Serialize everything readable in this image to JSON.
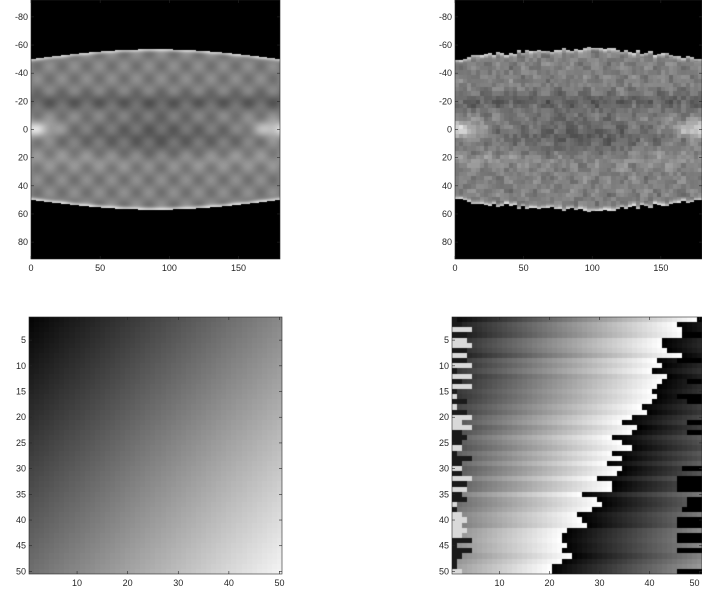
{
  "chart_data": [
    {
      "type": "heatmap",
      "title": "",
      "xlabel": "",
      "ylabel": "",
      "xlim": [
        0,
        180
      ],
      "ylim": [
        -92,
        92
      ],
      "y_direction": "reversed",
      "xticks": [
        0,
        50,
        100,
        150
      ],
      "yticks": [
        -80,
        -60,
        -40,
        -20,
        0,
        20,
        40,
        60,
        80
      ],
      "colormap": "gray",
      "profile": {
        "center_band_halfwidth": 50,
        "band_oscillation": 7,
        "band_period_x": 180
      },
      "rendering": "smooth"
    },
    {
      "type": "heatmap",
      "title": "",
      "xlabel": "",
      "ylabel": "",
      "xlim": [
        0,
        180
      ],
      "ylim": [
        -92,
        92
      ],
      "y_direction": "reversed",
      "xticks": [
        0,
        50,
        100,
        150
      ],
      "yticks": [
        -80,
        -60,
        -40,
        -20,
        0,
        20,
        40,
        60,
        80
      ],
      "colormap": "gray",
      "profile": {
        "center_band_halfwidth": 50,
        "band_oscillation": 7,
        "band_period_x": 180
      },
      "rendering": "blocky"
    },
    {
      "type": "heatmap",
      "title": "",
      "xlabel": "",
      "ylabel": "",
      "xlim": [
        0.5,
        50.5
      ],
      "ylim": [
        0.5,
        50.5
      ],
      "y_direction": "reversed",
      "xticks": [
        10,
        20,
        30,
        40,
        50
      ],
      "yticks": [
        5,
        10,
        15,
        20,
        25,
        30,
        35,
        40,
        45,
        50
      ],
      "grid_size": [
        50,
        50
      ],
      "colormap": "gray",
      "pattern": "gradient_dark_top_left_to_light_bottom_right"
    },
    {
      "type": "heatmap",
      "title": "",
      "xlabel": "",
      "ylabel": "",
      "xlim": [
        0.5,
        50.5
      ],
      "ylim": [
        0.5,
        50.5
      ],
      "y_direction": "reversed",
      "xticks": [
        10,
        20,
        30,
        40,
        50
      ],
      "yticks": [
        5,
        10,
        15,
        20,
        25,
        30,
        35,
        40,
        45,
        50
      ],
      "grid_size": [
        50,
        50
      ],
      "colormap": "gray",
      "pattern": "row_banded_horizontal_gradient_with_wrapped_edges"
    }
  ]
}
